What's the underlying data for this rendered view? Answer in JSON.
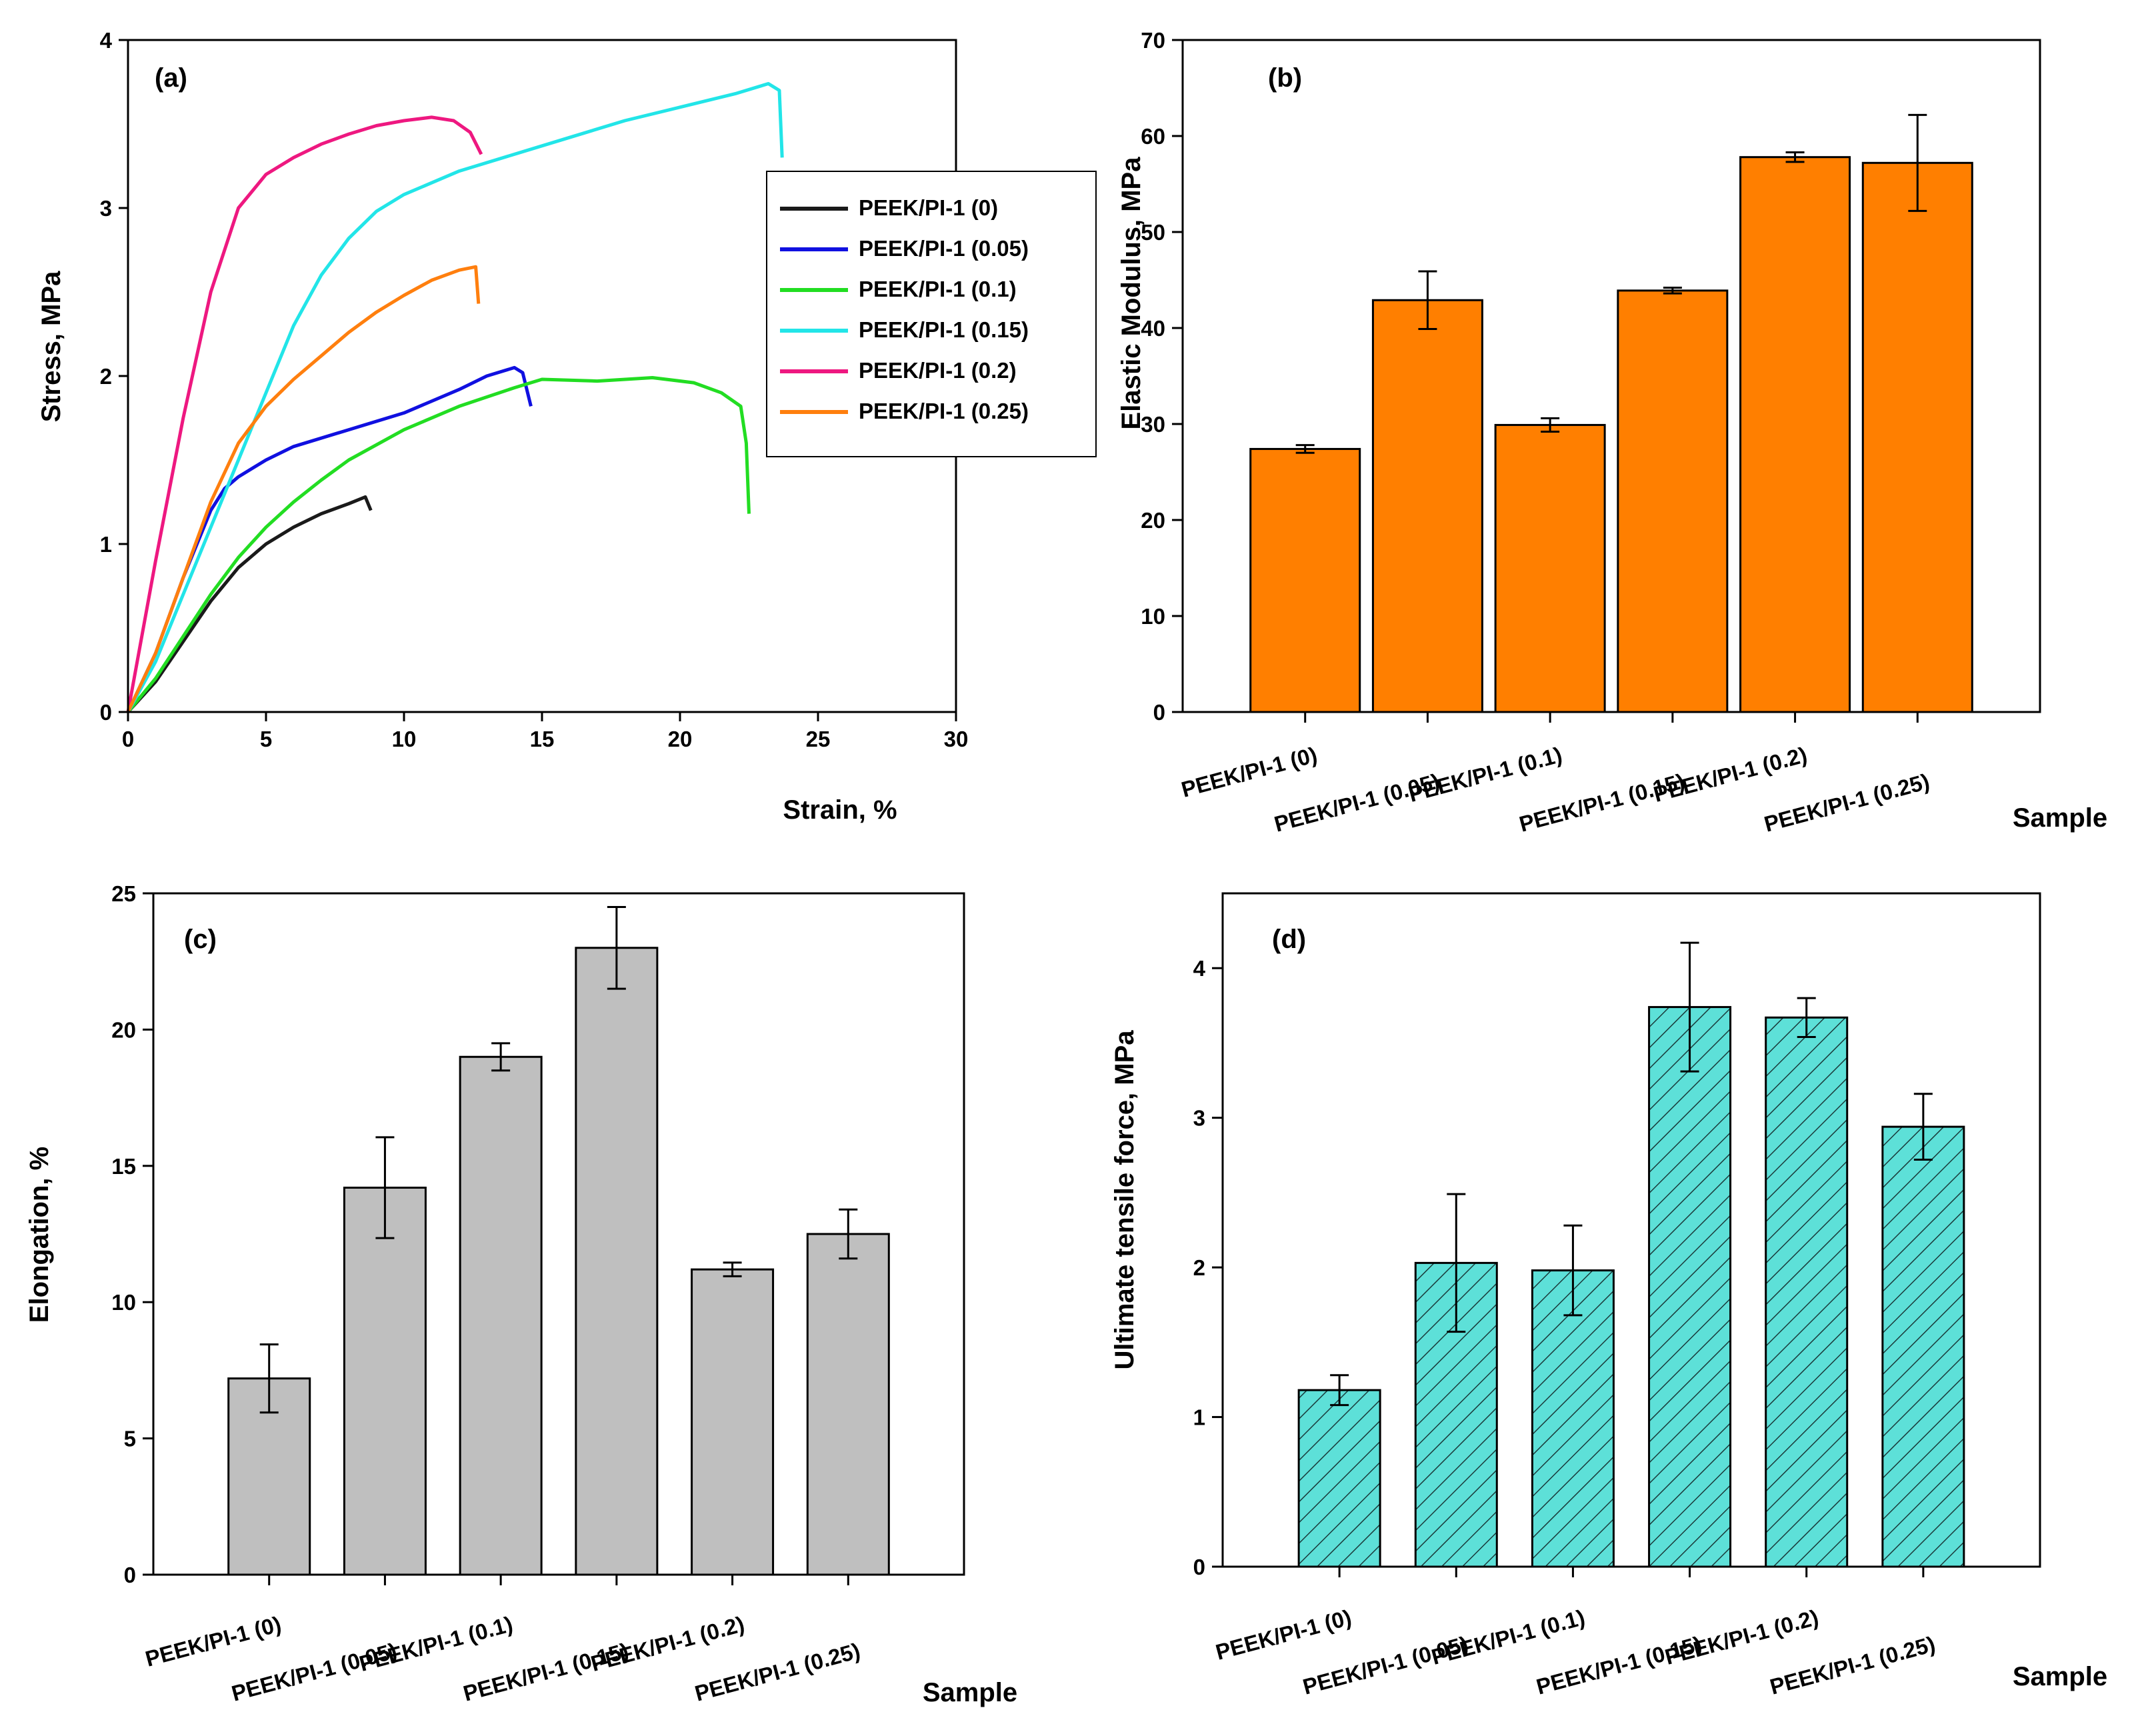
{
  "chart_data": [
    {
      "panel": "(a)",
      "type": "line",
      "xlabel": "Strain, %",
      "ylabel": "Stress, MPa",
      "xlim": [
        0,
        30
      ],
      "ylim": [
        0,
        4
      ],
      "xticks": [
        "0",
        "5",
        "10",
        "15",
        "20",
        "25",
        "30"
      ],
      "yticks": [
        "0",
        "1",
        "2",
        "3",
        "4"
      ],
      "legend_position": "right",
      "series": [
        {
          "name": "PEEK/PI-1 (0)",
          "color": "#1a1a1a",
          "points": [
            [
              0,
              0
            ],
            [
              1,
              0.18
            ],
            [
              2,
              0.42
            ],
            [
              3,
              0.66
            ],
            [
              4,
              0.86
            ],
            [
              5,
              1.0
            ],
            [
              6,
              1.1
            ],
            [
              7,
              1.18
            ],
            [
              8,
              1.24
            ],
            [
              8.6,
              1.28
            ],
            [
              8.8,
              1.2
            ]
          ]
        },
        {
          "name": "PEEK/PI-1 (0.05)",
          "color": "#1010e0",
          "points": [
            [
              0,
              0
            ],
            [
              1,
              0.35
            ],
            [
              2,
              0.8
            ],
            [
              3,
              1.2
            ],
            [
              3.5,
              1.33
            ],
            [
              4,
              1.4
            ],
            [
              5,
              1.5
            ],
            [
              6,
              1.58
            ],
            [
              8,
              1.68
            ],
            [
              10,
              1.78
            ],
            [
              12,
              1.92
            ],
            [
              13,
              2.0
            ],
            [
              14,
              2.05
            ],
            [
              14.3,
              2.02
            ],
            [
              14.6,
              1.82
            ]
          ]
        },
        {
          "name": "PEEK/PI-1 (0.1)",
          "color": "#22dd22",
          "points": [
            [
              0,
              0
            ],
            [
              1,
              0.2
            ],
            [
              2,
              0.45
            ],
            [
              3,
              0.7
            ],
            [
              4,
              0.92
            ],
            [
              5,
              1.1
            ],
            [
              6,
              1.25
            ],
            [
              7,
              1.38
            ],
            [
              8,
              1.5
            ],
            [
              10,
              1.68
            ],
            [
              12,
              1.82
            ],
            [
              14,
              1.93
            ],
            [
              15,
              1.98
            ],
            [
              17,
              1.97
            ],
            [
              19,
              1.99
            ],
            [
              20.5,
              1.96
            ],
            [
              21.5,
              1.9
            ],
            [
              22.2,
              1.82
            ],
            [
              22.4,
              1.6
            ],
            [
              22.5,
              1.18
            ]
          ]
        },
        {
          "name": "PEEK/PI-1 (0.15)",
          "color": "#22e5e8",
          "points": [
            [
              0,
              0
            ],
            [
              1,
              0.3
            ],
            [
              2,
              0.7
            ],
            [
              3,
              1.1
            ],
            [
              4,
              1.5
            ],
            [
              5,
              1.9
            ],
            [
              6,
              2.3
            ],
            [
              7,
              2.6
            ],
            [
              8,
              2.82
            ],
            [
              9,
              2.98
            ],
            [
              10,
              3.08
            ],
            [
              12,
              3.22
            ],
            [
              14,
              3.32
            ],
            [
              16,
              3.42
            ],
            [
              18,
              3.52
            ],
            [
              20,
              3.6
            ],
            [
              22,
              3.68
            ],
            [
              23.2,
              3.74
            ],
            [
              23.6,
              3.7
            ],
            [
              23.7,
              3.3
            ]
          ]
        },
        {
          "name": "PEEK/PI-1 (0.2)",
          "color": "#ee1880",
          "points": [
            [
              0,
              0
            ],
            [
              1,
              0.9
            ],
            [
              2,
              1.75
            ],
            [
              3,
              2.5
            ],
            [
              4,
              3.0
            ],
            [
              5,
              3.2
            ],
            [
              6,
              3.3
            ],
            [
              7,
              3.38
            ],
            [
              8,
              3.44
            ],
            [
              9,
              3.49
            ],
            [
              10,
              3.52
            ],
            [
              11,
              3.54
            ],
            [
              11.8,
              3.52
            ],
            [
              12.4,
              3.45
            ],
            [
              12.8,
              3.32
            ]
          ]
        },
        {
          "name": "PEEK/PI-1 (0.25)",
          "color": "#ff7f0e",
          "points": [
            [
              0,
              0
            ],
            [
              1,
              0.35
            ],
            [
              2,
              0.8
            ],
            [
              3,
              1.25
            ],
            [
              4,
              1.6
            ],
            [
              5,
              1.82
            ],
            [
              6,
              1.98
            ],
            [
              7,
              2.12
            ],
            [
              8,
              2.26
            ],
            [
              9,
              2.38
            ],
            [
              10,
              2.48
            ],
            [
              11,
              2.57
            ],
            [
              12,
              2.63
            ],
            [
              12.6,
              2.65
            ],
            [
              12.7,
              2.43
            ]
          ]
        }
      ]
    },
    {
      "panel": "(b)",
      "type": "bar",
      "xlabel": "Sample",
      "ylabel": "Elastic Modulus, MPa",
      "ylim": [
        0,
        70
      ],
      "yticks": [
        "0",
        "10",
        "20",
        "30",
        "40",
        "50",
        "60",
        "70"
      ],
      "categories": [
        "PEEK/PI-1 (0)",
        "PEEK/PI-1 (0.05)",
        "PEEK/PI-1 (0.1)",
        "PEEK/PI-1 (0.15)",
        "PEEK/PI-1 (0.2)",
        "PEEK/PI-1 (0.25)"
      ],
      "values": [
        27.4,
        42.9,
        29.9,
        43.9,
        57.8,
        57.2
      ],
      "errors": [
        0.4,
        3.0,
        0.7,
        0.3,
        0.5,
        5.0
      ],
      "bar_color": "#ff7f00",
      "hatch": false
    },
    {
      "panel": "(c)",
      "type": "bar",
      "xlabel": "Sample",
      "ylabel": "Elongation, %",
      "ylim": [
        0,
        25
      ],
      "yticks": [
        "0",
        "5",
        "10",
        "15",
        "20",
        "25"
      ],
      "categories": [
        "PEEK/PI-1 (0)",
        "PEEK/PI-1 (0.05)",
        "PEEK/PI-1 (0.1)",
        "PEEK/PI-1 (0.15)",
        "PEEK/PI-1 (0.2)",
        "PEEK/PI-1 (0.25)"
      ],
      "values": [
        7.2,
        14.2,
        19.0,
        23.0,
        11.2,
        12.5
      ],
      "errors": [
        1.25,
        1.85,
        0.5,
        1.5,
        0.25,
        0.9
      ],
      "bar_color": "#bfbfbf",
      "hatch": false
    },
    {
      "panel": "(d)",
      "type": "bar",
      "xlabel": "Sample",
      "ylabel": "Ultimate tensile force, MPa",
      "ylim": [
        0,
        4.5
      ],
      "yticks": [
        "0",
        "1",
        "2",
        "3",
        "4"
      ],
      "categories": [
        "PEEK/PI-1 (0)",
        "PEEK/PI-1 (0.05)",
        "PEEK/PI-1 (0.1)",
        "PEEK/PI-1 (0.15)",
        "PEEK/PI-1 (0.2)",
        "PEEK/PI-1 (0.25)"
      ],
      "values": [
        1.18,
        2.03,
        1.98,
        3.74,
        3.67,
        2.94
      ],
      "errors": [
        0.1,
        0.46,
        0.3,
        0.43,
        0.13,
        0.22
      ],
      "bar_color": "#5de0d8",
      "hatch": true
    }
  ]
}
